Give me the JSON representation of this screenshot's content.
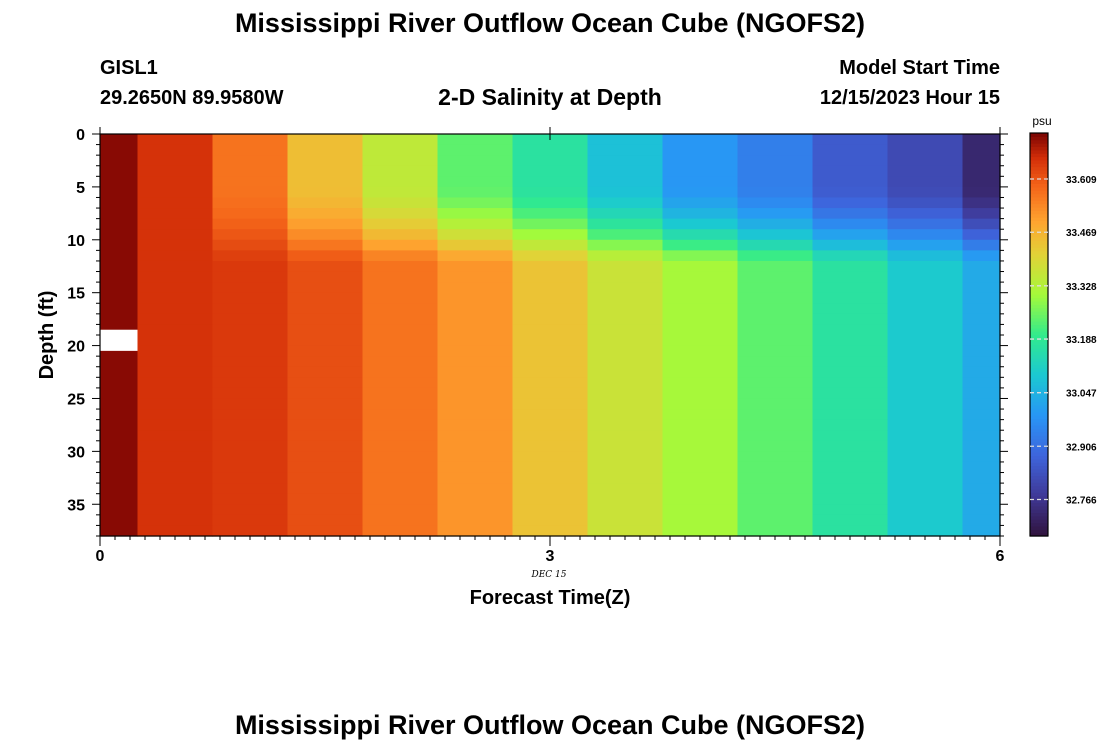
{
  "header": {
    "title": "Mississippi River Outflow Ocean Cube (NGOFS2)",
    "station_name": "GISL1",
    "station_coords": "29.2650N  89.9580W",
    "subtitle": "2-D Salinity at Depth",
    "model_label": "Model Start Time",
    "model_time": "12/15/2023 Hour 15"
  },
  "footer": {
    "title": "Mississippi River Outflow Ocean Cube (NGOFS2)"
  },
  "chart_data": {
    "type": "heatmap",
    "xlabel": "Forecast Time(Z)",
    "ylabel": "Depth (ft)",
    "date_label": "DEC 15",
    "xlim": [
      0,
      6
    ],
    "ylim": [
      0,
      38
    ],
    "x_ticks": [
      0,
      3,
      6
    ],
    "y_ticks": [
      0,
      5,
      10,
      15,
      20,
      25,
      30,
      35
    ],
    "colorbar": {
      "unit": "psu",
      "range": [
        32.67,
        33.73
      ],
      "ticks": [
        "33.609",
        "33.469",
        "33.328",
        "33.188",
        "33.047",
        "32.906",
        "32.766"
      ],
      "tick_values": [
        33.609,
        33.469,
        33.328,
        33.188,
        33.047,
        32.906,
        32.766
      ]
    },
    "columns": [
      {
        "x": 0.0,
        "surface": 33.72,
        "bottom": 33.72
      },
      {
        "x": 0.5,
        "surface": 33.66,
        "bottom": 33.66
      },
      {
        "x": 1.0,
        "surface": 33.57,
        "bottom": 33.65
      },
      {
        "x": 1.5,
        "surface": 33.45,
        "bottom": 33.62
      },
      {
        "x": 2.0,
        "surface": 33.35,
        "bottom": 33.57
      },
      {
        "x": 2.5,
        "surface": 33.24,
        "bottom": 33.52
      },
      {
        "x": 3.0,
        "surface": 33.17,
        "bottom": 33.44
      },
      {
        "x": 3.5,
        "surface": 33.08,
        "bottom": 33.37
      },
      {
        "x": 4.0,
        "surface": 32.99,
        "bottom": 33.31
      },
      {
        "x": 4.5,
        "surface": 32.94,
        "bottom": 33.24
      },
      {
        "x": 5.0,
        "surface": 32.86,
        "bottom": 33.17
      },
      {
        "x": 5.5,
        "surface": 32.82,
        "bottom": 33.1
      },
      {
        "x": 6.0,
        "surface": 32.73,
        "bottom": 33.03
      }
    ],
    "halocline_depth": [
      10,
      12
    ],
    "missing_cells": [
      {
        "x": 0.0,
        "depth": [
          18.5,
          20.5
        ]
      }
    ]
  }
}
